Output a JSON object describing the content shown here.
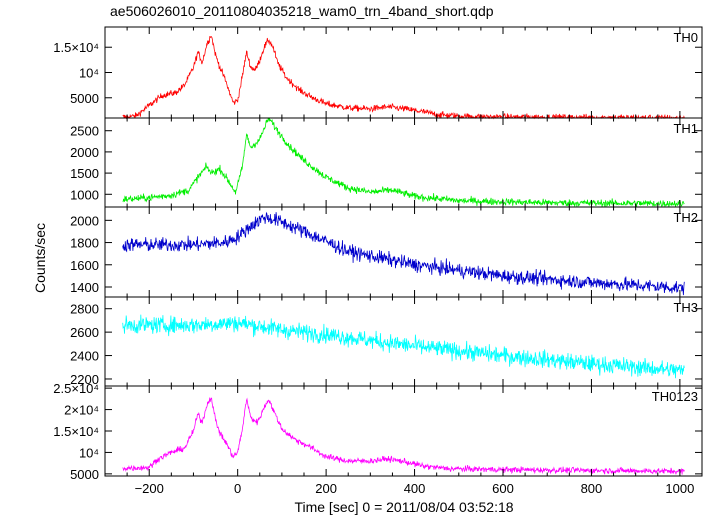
{
  "title": "ae506026010_20110804035218_wam0_trn_4band_short.qdp",
  "xlabel": "Time [sec] 0 = 2011/08/04 03:52:18",
  "ylabel": "Counts/sec",
  "colors": {
    "TH0": "#ff0000",
    "TH1": "#00ee00",
    "TH2": "#0000cc",
    "TH3": "#00ffff",
    "TH0123": "#ff00ff"
  },
  "chart_data": {
    "type": "line",
    "x_range": [
      -300,
      1050
    ],
    "x_ticks": [
      -200,
      0,
      200,
      400,
      600,
      800,
      1000
    ],
    "x_tick_labels": [
      "−200",
      "0",
      "200",
      "400",
      "600",
      "800",
      "1000"
    ],
    "panels": [
      {
        "name": "TH0",
        "ylim": [
          1000,
          19000
        ],
        "y_ticks": [
          5000,
          10000,
          15000
        ],
        "y_tick_labels": [
          "5000",
          "10⁴",
          "1.5×10⁴"
        ],
        "noise": 600,
        "profile": [
          [
            -260,
            1200
          ],
          [
            -230,
            1400
          ],
          [
            -200,
            3500
          ],
          [
            -170,
            5500
          ],
          [
            -140,
            6000
          ],
          [
            -120,
            7500
          ],
          [
            -100,
            11000
          ],
          [
            -90,
            14000
          ],
          [
            -80,
            12000
          ],
          [
            -70,
            15500
          ],
          [
            -60,
            17500
          ],
          [
            -50,
            13500
          ],
          [
            -40,
            11000
          ],
          [
            -30,
            9000
          ],
          [
            -20,
            6500
          ],
          [
            -10,
            4000
          ],
          [
            0,
            4500
          ],
          [
            10,
            9000
          ],
          [
            20,
            14000
          ],
          [
            30,
            11000
          ],
          [
            40,
            10500
          ],
          [
            50,
            12500
          ],
          [
            60,
            15000
          ],
          [
            70,
            16500
          ],
          [
            80,
            15000
          ],
          [
            90,
            12000
          ],
          [
            110,
            9000
          ],
          [
            140,
            6500
          ],
          [
            170,
            5000
          ],
          [
            200,
            3800
          ],
          [
            250,
            3000
          ],
          [
            300,
            2800
          ],
          [
            340,
            3200
          ],
          [
            380,
            2800
          ],
          [
            420,
            2200
          ],
          [
            460,
            1600
          ],
          [
            520,
            1300
          ],
          [
            600,
            1200
          ],
          [
            800,
            1100
          ],
          [
            1010,
            1000
          ]
        ]
      },
      {
        "name": "TH1",
        "ylim": [
          700,
          2800
        ],
        "y_ticks": [
          1000,
          1500,
          2000,
          2500
        ],
        "y_tick_labels": [
          "1000",
          "1500",
          "2000",
          "2500"
        ],
        "noise": 80,
        "profile": [
          [
            -260,
            880
          ],
          [
            -200,
            920
          ],
          [
            -150,
            980
          ],
          [
            -110,
            1100
          ],
          [
            -90,
            1400
          ],
          [
            -70,
            1650
          ],
          [
            -60,
            1500
          ],
          [
            -40,
            1600
          ],
          [
            -20,
            1300
          ],
          [
            -5,
            1050
          ],
          [
            10,
            1600
          ],
          [
            20,
            2400
          ],
          [
            30,
            2100
          ],
          [
            50,
            2300
          ],
          [
            70,
            2800
          ],
          [
            90,
            2500
          ],
          [
            120,
            2100
          ],
          [
            150,
            1800
          ],
          [
            200,
            1400
          ],
          [
            250,
            1150
          ],
          [
            300,
            1050
          ],
          [
            350,
            1100
          ],
          [
            400,
            950
          ],
          [
            500,
            850
          ],
          [
            700,
            800
          ],
          [
            1010,
            780
          ]
        ]
      },
      {
        "name": "TH2",
        "ylim": [
          1310,
          2120
        ],
        "y_ticks": [
          1400,
          1600,
          1800,
          2000
        ],
        "y_tick_labels": [
          "1400",
          "1600",
          "1800",
          "2000"
        ],
        "noise": 60,
        "profile": [
          [
            -260,
            1780
          ],
          [
            -200,
            1780
          ],
          [
            -100,
            1780
          ],
          [
            -30,
            1800
          ],
          [
            0,
            1850
          ],
          [
            30,
            1950
          ],
          [
            60,
            2030
          ],
          [
            90,
            2000
          ],
          [
            150,
            1900
          ],
          [
            250,
            1720
          ],
          [
            400,
            1600
          ],
          [
            600,
            1500
          ],
          [
            800,
            1440
          ],
          [
            1010,
            1390
          ]
        ]
      },
      {
        "name": "TH3",
        "ylim": [
          2140,
          2900
        ],
        "y_ticks": [
          2200,
          2400,
          2600,
          2800
        ],
        "y_tick_labels": [
          "2200",
          "2400",
          "2600",
          "2800"
        ],
        "noise": 70,
        "profile": [
          [
            -260,
            2660
          ],
          [
            -100,
            2660
          ],
          [
            0,
            2680
          ],
          [
            100,
            2620
          ],
          [
            200,
            2580
          ],
          [
            400,
            2480
          ],
          [
            600,
            2400
          ],
          [
            800,
            2330
          ],
          [
            1010,
            2270
          ]
        ]
      },
      {
        "name": "TH0123",
        "ylim": [
          4500,
          25500
        ],
        "y_ticks": [
          5000,
          10000,
          15000,
          20000,
          25000
        ],
        "y_tick_labels": [
          "5000",
          "10⁴",
          "1.5×10⁴",
          "2×10⁴",
          "2.5×10⁴"
        ],
        "noise": 650,
        "profile": [
          [
            -260,
            6300
          ],
          [
            -200,
            6500
          ],
          [
            -180,
            8500
          ],
          [
            -150,
            10000
          ],
          [
            -120,
            11000
          ],
          [
            -100,
            15000
          ],
          [
            -90,
            19000
          ],
          [
            -80,
            17000
          ],
          [
            -70,
            21000
          ],
          [
            -60,
            23000
          ],
          [
            -50,
            17500
          ],
          [
            -40,
            14500
          ],
          [
            -25,
            12000
          ],
          [
            -10,
            9000
          ],
          [
            0,
            10000
          ],
          [
            10,
            15000
          ],
          [
            20,
            22500
          ],
          [
            30,
            18000
          ],
          [
            45,
            17000
          ],
          [
            60,
            20500
          ],
          [
            70,
            22500
          ],
          [
            80,
            20000
          ],
          [
            100,
            15500
          ],
          [
            130,
            13000
          ],
          [
            160,
            11500
          ],
          [
            200,
            9000
          ],
          [
            250,
            8000
          ],
          [
            300,
            8000
          ],
          [
            340,
            8500
          ],
          [
            380,
            7800
          ],
          [
            420,
            6800
          ],
          [
            480,
            6200
          ],
          [
            600,
            6000
          ],
          [
            800,
            5800
          ],
          [
            1010,
            5600
          ]
        ]
      }
    ]
  }
}
